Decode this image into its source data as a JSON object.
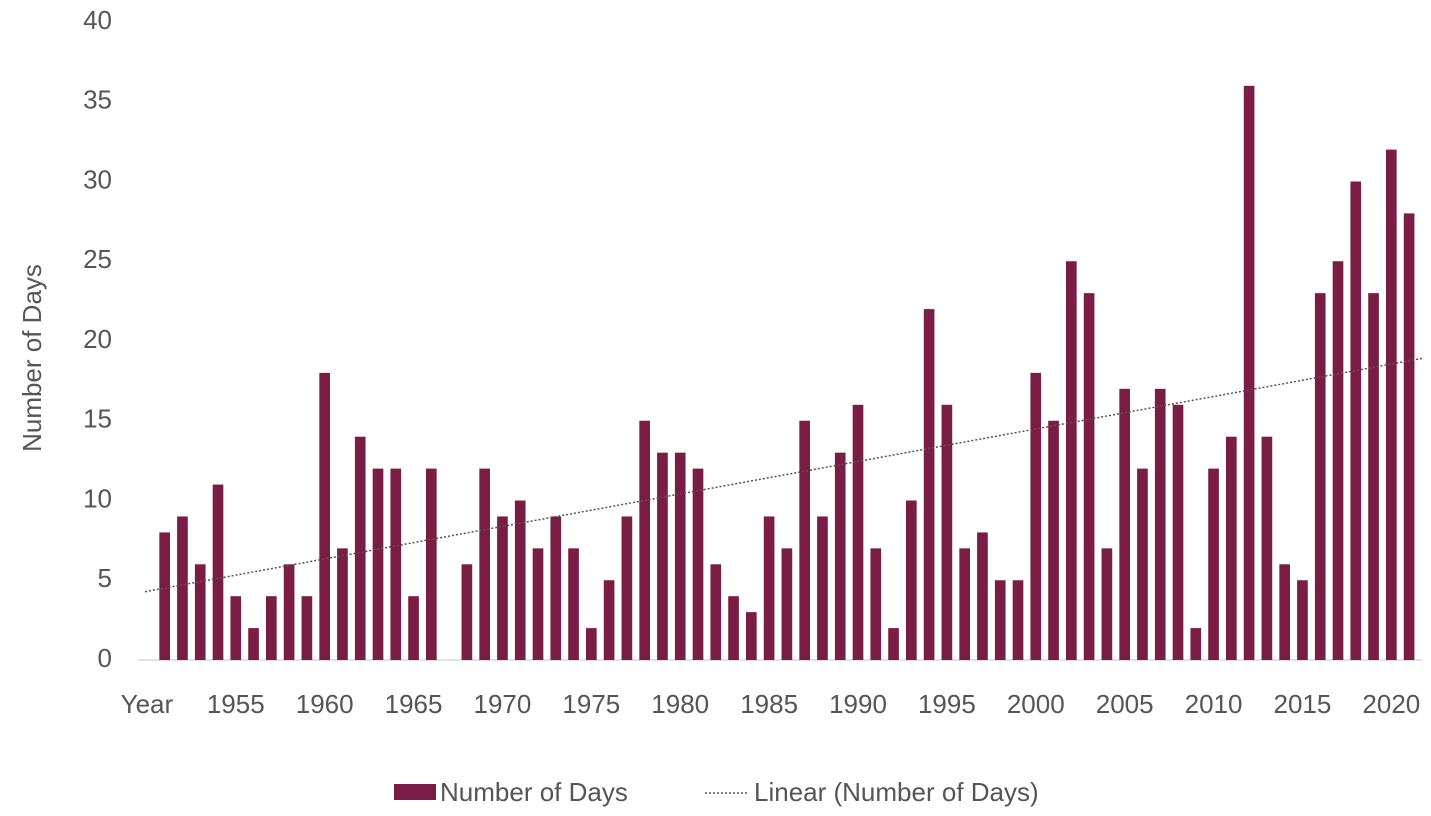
{
  "chart_data": {
    "type": "bar",
    "y_label": "Number of Days",
    "categories": [
      "Year",
      null,
      null,
      null,
      null,
      "1955",
      null,
      null,
      null,
      null,
      "1960",
      null,
      null,
      null,
      null,
      "1965",
      null,
      null,
      null,
      null,
      "1970",
      null,
      null,
      null,
      null,
      "1975",
      null,
      null,
      null,
      null,
      "1980",
      null,
      null,
      null,
      null,
      "1985",
      null,
      null,
      null,
      null,
      "1990",
      null,
      null,
      null,
      null,
      "1995",
      null,
      null,
      null,
      null,
      "2000",
      null,
      null,
      null,
      null,
      "2005",
      null,
      null,
      null,
      null,
      "2010",
      null,
      null,
      null,
      null,
      "2015",
      null,
      null,
      null,
      null,
      "2020",
      null
    ],
    "series": [
      {
        "name": "Number of Days",
        "color": "#7a1d45",
        "values": [
          null,
          8,
          9,
          6,
          11,
          4,
          2,
          4,
          6,
          4,
          18,
          7,
          14,
          12,
          12,
          4,
          12,
          0,
          6,
          12,
          9,
          10,
          7,
          9,
          7,
          2,
          5,
          9,
          15,
          13,
          13,
          12,
          6,
          4,
          3,
          9,
          7,
          15,
          9,
          13,
          16,
          7,
          2,
          10,
          22,
          16,
          7,
          8,
          5,
          5,
          18,
          15,
          25,
          23,
          7,
          17,
          12,
          17,
          16,
          2,
          12,
          14,
          36,
          14,
          6,
          5,
          23,
          25,
          30,
          23,
          32,
          28
        ]
      }
    ],
    "trendline": {
      "name": "Linear (Number of Days)",
      "color": "#555555"
    },
    "ylim": [
      0,
      40
    ],
    "yticks": [
      0,
      5,
      10,
      15,
      20,
      25,
      30,
      35,
      40
    ],
    "grid": false
  }
}
